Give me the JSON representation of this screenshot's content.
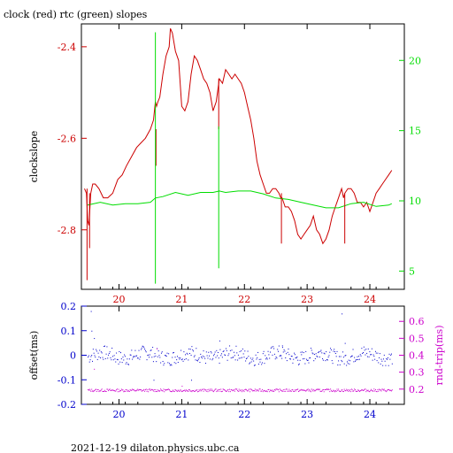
{
  "title": "clock (red) rtc (green) slopes",
  "footer": "2021-12-19  dilaton.physics.ubc.ca",
  "colors": {
    "red": "#cc0000",
    "green": "#00dd00",
    "blue": "#0000cc",
    "magenta": "#cc00cc",
    "black": "#000000"
  },
  "chart_data": [
    {
      "type": "line",
      "ylabel": "clockslope",
      "x_ticks": [
        "20",
        "21",
        "22",
        "23",
        "24"
      ],
      "xlim": [
        19.4,
        24.55
      ],
      "left_axis": {
        "ylim": [
          -2.93,
          -2.35
        ],
        "ticks": [
          "-2.4",
          "-2.6",
          "-2.8"
        ],
        "tick_values": [
          -2.4,
          -2.6,
          -2.8
        ]
      },
      "right_axis": {
        "ylim": [
          3.7,
          22.6
        ],
        "ticks": [
          "20",
          "15",
          "10",
          "5"
        ],
        "tick_values": [
          20,
          15,
          10,
          5
        ]
      },
      "series": [
        {
          "color": "red",
          "axis": "left",
          "x": [
            19.45,
            19.48,
            19.5,
            19.52,
            19.55,
            19.58,
            19.62,
            19.68,
            19.75,
            19.82,
            19.9,
            19.98,
            20.05,
            20.12,
            20.2,
            20.28,
            20.35,
            20.42,
            20.5,
            20.55,
            20.58,
            20.6,
            20.62,
            20.65,
            20.7,
            20.75,
            20.8,
            20.82,
            20.85,
            20.9,
            20.95,
            21.0,
            21.05,
            21.1,
            21.15,
            21.2,
            21.25,
            21.3,
            21.35,
            21.4,
            21.45,
            21.5,
            21.55,
            21.6,
            21.65,
            21.7,
            21.75,
            21.8,
            21.85,
            21.9,
            21.95,
            22.0,
            22.05,
            22.1,
            22.15,
            22.2,
            22.25,
            22.3,
            22.35,
            22.4,
            22.45,
            22.5,
            22.55,
            22.58,
            22.6,
            22.65,
            22.7,
            22.75,
            22.8,
            22.85,
            22.9,
            22.95,
            23.0,
            23.05,
            23.1,
            23.15,
            23.2,
            23.25,
            23.3,
            23.35,
            23.4,
            23.45,
            23.5,
            23.55,
            23.58,
            23.6,
            23.65,
            23.7,
            23.75,
            23.8,
            23.85,
            23.9,
            23.95,
            24.0,
            24.05,
            24.1,
            24.15,
            24.2,
            24.25,
            24.3,
            24.35
          ],
          "y": [
            -2.71,
            -2.72,
            -2.78,
            -2.79,
            -2.72,
            -2.7,
            -2.7,
            -2.71,
            -2.73,
            -2.73,
            -2.72,
            -2.69,
            -2.68,
            -2.66,
            -2.64,
            -2.62,
            -2.61,
            -2.6,
            -2.58,
            -2.56,
            -2.52,
            -2.53,
            -2.52,
            -2.51,
            -2.46,
            -2.42,
            -2.4,
            -2.36,
            -2.37,
            -2.41,
            -2.43,
            -2.53,
            -2.54,
            -2.52,
            -2.46,
            -2.42,
            -2.43,
            -2.45,
            -2.47,
            -2.48,
            -2.5,
            -2.54,
            -2.52,
            -2.47,
            -2.48,
            -2.45,
            -2.46,
            -2.47,
            -2.46,
            -2.47,
            -2.48,
            -2.5,
            -2.53,
            -2.56,
            -2.6,
            -2.65,
            -2.68,
            -2.7,
            -2.72,
            -2.72,
            -2.71,
            -2.71,
            -2.72,
            -2.73,
            -2.73,
            -2.75,
            -2.75,
            -2.76,
            -2.78,
            -2.81,
            -2.82,
            -2.81,
            -2.8,
            -2.79,
            -2.77,
            -2.8,
            -2.81,
            -2.83,
            -2.82,
            -2.8,
            -2.77,
            -2.75,
            -2.73,
            -2.71,
            -2.73,
            -2.72,
            -2.71,
            -2.71,
            -2.72,
            -2.74,
            -2.74,
            -2.75,
            -2.74,
            -2.76,
            -2.74,
            -2.72,
            -2.71,
            -2.7,
            -2.69,
            -2.68,
            -2.67
          ]
        },
        {
          "color": "green",
          "axis": "right",
          "x": [
            19.5,
            19.7,
            19.9,
            20.1,
            20.3,
            20.5,
            20.58,
            20.7,
            20.9,
            21.1,
            21.3,
            21.5,
            21.6,
            21.7,
            21.9,
            22.1,
            22.3,
            22.5,
            22.7,
            22.9,
            23.1,
            23.3,
            23.5,
            23.7,
            23.9,
            24.1,
            24.3,
            24.35
          ],
          "y": [
            9.7,
            9.9,
            9.7,
            9.8,
            9.8,
            9.9,
            10.2,
            10.3,
            10.6,
            10.4,
            10.6,
            10.6,
            10.7,
            10.6,
            10.7,
            10.7,
            10.5,
            10.2,
            10.1,
            9.9,
            9.7,
            9.5,
            9.5,
            9.8,
            9.9,
            9.6,
            9.7,
            9.8
          ]
        }
      ],
      "spikes": [
        {
          "color": "red",
          "axis": "left",
          "x": 19.49,
          "y0": -2.71,
          "y1": -2.91
        },
        {
          "color": "red",
          "axis": "left",
          "x": 19.53,
          "y0": -2.72,
          "y1": -2.84
        },
        {
          "color": "red",
          "axis": "left",
          "x": 20.59,
          "y0": -2.58,
          "y1": -2.66
        },
        {
          "color": "red",
          "axis": "left",
          "x": 21.59,
          "y0": -2.47,
          "y1": -2.58
        },
        {
          "color": "red",
          "axis": "left",
          "x": 22.59,
          "y0": -2.72,
          "y1": -2.83
        },
        {
          "color": "red",
          "axis": "left",
          "x": 23.6,
          "y0": -2.72,
          "y1": -2.83
        },
        {
          "color": "green",
          "axis": "right",
          "x": 20.58,
          "y0": 22.0,
          "y1": 4.1
        },
        {
          "color": "green",
          "axis": "right",
          "x": 21.59,
          "y0": 15.3,
          "y1": 5.2
        }
      ]
    },
    {
      "type": "scatter",
      "ylabel_left": "offset(ms)",
      "ylabel_right": "rnd-trip(ms)",
      "x_ticks": [
        "20",
        "21",
        "22",
        "23",
        "24"
      ],
      "xlim": [
        19.4,
        24.55
      ],
      "left_axis": {
        "ylim": [
          -0.2,
          0.2
        ],
        "ticks": [
          "0.2",
          "0.1",
          "0",
          "-0.1",
          "-0.2"
        ],
        "tick_values": [
          0.2,
          0.1,
          0,
          -0.1,
          -0.2
        ]
      },
      "right_axis": {
        "ylim": [
          0.11,
          0.69
        ],
        "ticks": [
          "0.6",
          "0.5",
          "0.4",
          "0.3",
          "0.2"
        ],
        "tick_values": [
          0.6,
          0.5,
          0.4,
          0.3,
          0.2
        ]
      },
      "series": [
        {
          "color": "blue",
          "axis": "left",
          "x_range": [
            19.5,
            24.35
          ],
          "y_center": 0.0,
          "y_spread": 0.03,
          "outliers": [
            [
              19.55,
              0.18
            ],
            [
              19.56,
              0.1
            ],
            [
              19.6,
              0.07
            ],
            [
              20.55,
              -0.1
            ],
            [
              21.15,
              -0.1
            ],
            [
              21.6,
              0.06
            ],
            [
              22.6,
              0.04
            ],
            [
              23.55,
              0.17
            ],
            [
              23.6,
              0.05
            ]
          ]
        },
        {
          "color": "magenta",
          "axis": "right",
          "x_range": [
            19.5,
            24.35
          ],
          "y_center": 0.195,
          "y_spread": 0.008,
          "outliers": [
            [
              19.6,
              0.32
            ],
            [
              20.6,
              0.44
            ],
            [
              21.0,
              0.22
            ]
          ]
        }
      ]
    }
  ]
}
